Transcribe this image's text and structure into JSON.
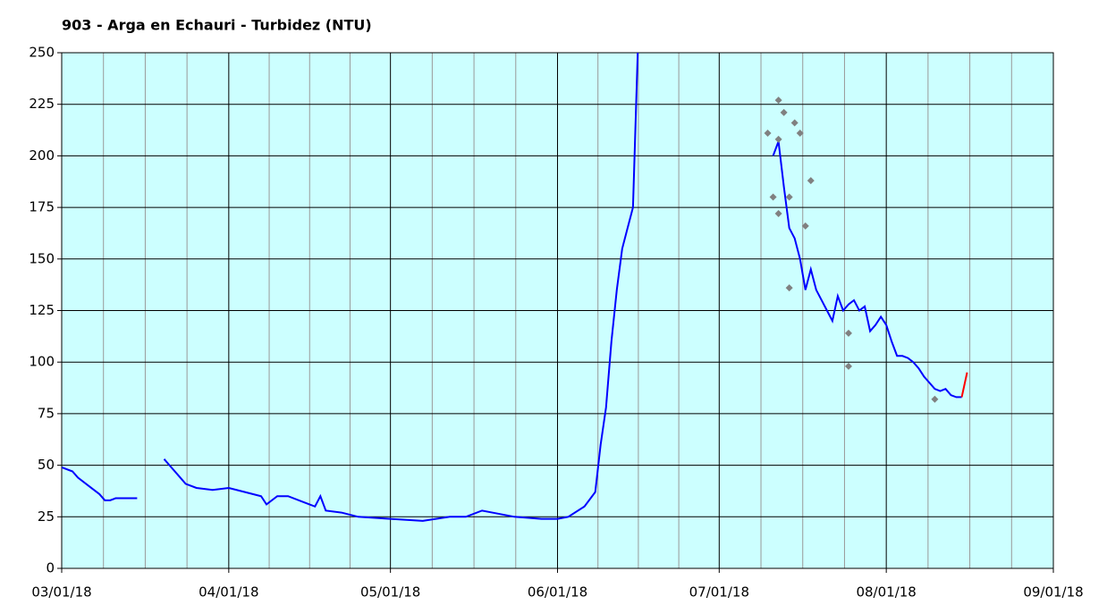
{
  "chart_data": {
    "type": "line",
    "title": "903 - Arga en Echauri - Turbidez (NTU)",
    "xlim": [
      "03/01/18",
      "09/01/18"
    ],
    "xticks": [
      "03/01/18",
      "04/01/18",
      "05/01/18",
      "06/01/18",
      "07/01/18",
      "08/01/18",
      "09/01/18"
    ],
    "ylim": [
      0,
      250
    ],
    "yticks": [
      0,
      25,
      50,
      75,
      100,
      125,
      150,
      175,
      200,
      225,
      250
    ],
    "grid": true,
    "background": "#ccffff",
    "series": [
      {
        "color": "#0000ff",
        "x": [
          "03/01/18",
          "03/03/18",
          "03/04/18",
          "03/06/18",
          "03/08/18",
          "03/09/18",
          "03/10/18",
          "03/11/18",
          "03/15/18",
          "03/17/18",
          "03/20/18",
          "03/21/18",
          "03/23/18",
          "03/24/18",
          "03/26/18",
          "03/29/18",
          "04/01/18",
          "04/04/18",
          "04/07/18",
          "04/08/18",
          "04/10/18",
          "04/12/18",
          "04/15/18",
          "04/17/18",
          "04/18/18",
          "04/19/18",
          "04/22/18",
          "04/25/18",
          "05/01/18",
          "05/07/18",
          "05/12/18",
          "05/15/18",
          "05/18/18",
          "05/20/18",
          "05/24/18",
          "05/29/18",
          "06/01/18",
          "06/03/18",
          "06/06/18",
          "06/08/18",
          "06/09/18",
          "06/10/18",
          "06/11/18",
          "06/12/18",
          "06/13/18",
          "06/14/18",
          "06/15/18",
          "06/16/18",
          "06/30/18",
          "07/11/18",
          "07/12/18",
          "07/13/18",
          "07/14/18",
          "07/15/18",
          "07/16/18",
          "07/17/18",
          "07/18/18",
          "07/19/18",
          "07/20/18",
          "07/21/18",
          "07/22/18",
          "07/23/18",
          "07/24/18",
          "07/25/18",
          "07/26/18",
          "07/27/18",
          "07/28/18",
          "07/29/18",
          "07/30/18",
          "07/31/18",
          "08/01/18",
          "08/02/18",
          "08/03/18",
          "08/04/18",
          "08/05/18",
          "08/06/18",
          "08/07/18",
          "08/08/18",
          "08/09/18",
          "08/10/18",
          "08/11/18",
          "08/12/18",
          "08/13/18",
          "08/14/18",
          "08/15/18"
        ],
        "values": [
          49,
          47,
          44,
          40,
          36,
          33,
          33,
          34,
          34,
          null,
          53,
          50,
          44,
          41,
          39,
          38,
          39,
          37,
          35,
          31,
          35,
          35,
          32,
          30,
          35,
          28,
          27,
          25,
          24,
          23,
          25,
          25,
          28,
          27,
          25,
          24,
          24,
          25,
          30,
          37,
          60,
          78,
          110,
          135,
          155,
          165,
          175,
          260,
          null,
          200,
          207,
          185,
          165,
          160,
          150,
          135,
          145,
          135,
          130,
          125,
          120,
          132,
          125,
          128,
          130,
          125,
          127,
          115,
          118,
          122,
          118,
          110,
          103,
          103,
          102,
          100,
          97,
          93,
          90,
          87,
          86,
          87,
          84,
          83,
          83
        ]
      },
      {
        "color": "#ff0000",
        "x": [
          "08/15/18",
          "08/16/18"
        ],
        "values": [
          83,
          95
        ]
      },
      {
        "color": "#808080",
        "marker": "diamond",
        "x": [
          "07/10/18",
          "07/12/18",
          "07/13/18",
          "07/15/18",
          "07/16/18",
          "07/12/18",
          "07/11/18",
          "07/12/18",
          "07/14/18",
          "07/17/18",
          "07/18/18",
          "07/14/18",
          "07/25/18",
          "07/25/18",
          "08/10/18"
        ],
        "values": [
          211,
          227,
          221,
          216,
          211,
          208,
          180,
          172,
          180,
          166,
          188,
          136,
          114,
          98,
          82
        ]
      }
    ]
  }
}
